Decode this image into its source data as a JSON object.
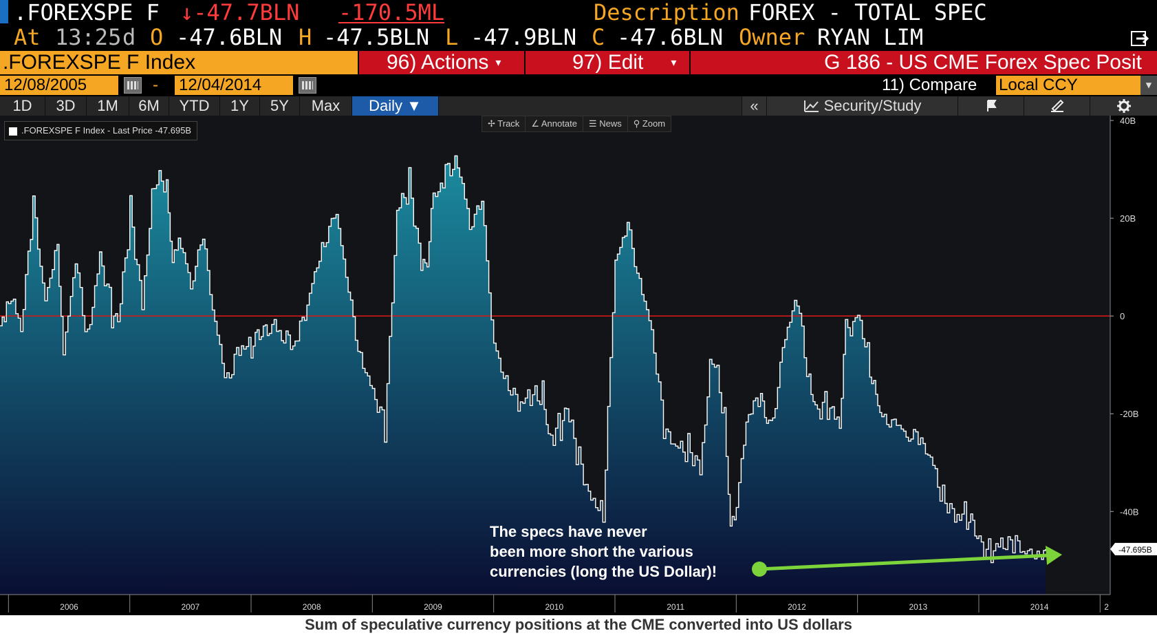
{
  "quote": {
    "ticker": ".FOREXSPE F",
    "last_change": "↓-47.7BLN",
    "net_change": "-170.5ML",
    "description_label": "Description",
    "description": "FOREX - TOTAL SPEC",
    "at_label": "At",
    "time": "13:25",
    "time_suffix": "d",
    "open_label": "O",
    "open": "-47.6BLN",
    "high_label": "H",
    "high": "-47.5BLN",
    "low_label": "L",
    "low": "-47.9BLN",
    "close_label": "C",
    "close": "-47.6BLN",
    "owner_label": "Owner",
    "owner": "RYAN LIM"
  },
  "toolbar": {
    "security": ".FOREXSPE F Index",
    "actions_label": "96) Actions",
    "edit_label": "97) Edit",
    "page_title": "G 186 - US CME Forex Spec Posit"
  },
  "dates": {
    "start": "12/08/2005",
    "separator": "-",
    "end": "12/04/2014",
    "compare_label": "11) Compare",
    "currency": "Local CCY"
  },
  "tabs": [
    "1D",
    "3D",
    "1M",
    "6M",
    "YTD",
    "1Y",
    "5Y",
    "Max",
    "Daily ▼"
  ],
  "tools": {
    "collapse": "«",
    "security_study": "Security/Study"
  },
  "mini_tools": [
    "Track",
    "Annotate",
    "News",
    "Zoom"
  ],
  "legend": ".FOREXSPE F Index - Last Price -47.695B",
  "annotation": "The specs have never\nbeen more short the various\ncurrencies (long the US Dollar)!",
  "caption": "Sum of speculative currency positions at the CME converted into US dollars",
  "colors": {
    "amber": "#f5a623",
    "red_bar": "#c8101f",
    "zero_line": "#d11a1a",
    "arrow": "#7dd33a",
    "area_top": "#1b8ca0",
    "area_bottom": "#0a0f33"
  },
  "chart_data": {
    "type": "area",
    "title": "",
    "xlabel": "",
    "ylabel": "",
    "ylim": [
      -57,
      41
    ],
    "y_ticks": [
      "40B",
      "20B",
      "0",
      "-20B",
      "-40B"
    ],
    "y_tick_values": [
      40,
      20,
      0,
      -20,
      -40
    ],
    "x_ticks": [
      "2006",
      "2007",
      "2008",
      "2009",
      "2010",
      "2011",
      "2012",
      "2013",
      "2014",
      "2"
    ],
    "reference_line": 0,
    "last_value_label": "-47.695B",
    "series": [
      {
        "name": ".FOREXSPE F Index - Last Price",
        "x": [
          2005.93,
          2006.0,
          2006.1,
          2006.2,
          2006.3,
          2006.4,
          2006.45,
          2006.55,
          2006.65,
          2006.75,
          2006.85,
          2006.9,
          2007.0,
          2007.1,
          2007.2,
          2007.3,
          2007.35,
          2007.4,
          2007.5,
          2007.6,
          2007.7,
          2007.8,
          2007.9,
          2008.0,
          2008.05,
          2008.1,
          2008.15,
          2008.25,
          2008.4,
          2008.5,
          2008.6,
          2008.7,
          2008.8,
          2008.9,
          2009.0,
          2009.1,
          2009.2,
          2009.3,
          2009.4,
          2009.45,
          2009.5,
          2009.6,
          2009.7,
          2009.8,
          2009.9,
          2010.0,
          2010.1,
          2010.2,
          2010.3,
          2010.4,
          2010.45,
          2010.55,
          2010.6,
          2010.7,
          2010.8,
          2010.9,
          2011.0,
          2011.1,
          2011.2,
          2011.3,
          2011.4,
          2011.5,
          2011.6,
          2011.7,
          2011.8,
          2011.9,
          2011.95,
          2012.0,
          2012.1,
          2012.2,
          2012.25,
          2012.3,
          2012.4,
          2012.5,
          2012.6,
          2012.65,
          2012.75,
          2012.85,
          2012.9,
          2013.0,
          2013.1,
          2013.15,
          2013.2,
          2013.3,
          2013.4,
          2013.5,
          2013.6,
          2013.7,
          2013.8,
          2013.9,
          2013.95,
          2014.0,
          2014.1,
          2014.2,
          2014.3,
          2014.4,
          2014.5,
          2014.55
        ],
        "values": [
          -2,
          6,
          -4,
          22,
          4,
          16,
          -8,
          10,
          -4,
          14,
          0,
          -3,
          22,
          4,
          28,
          25,
          10,
          18,
          6,
          15,
          -2,
          -12,
          -6,
          -8,
          -6,
          -2,
          0,
          -6,
          -4,
          8,
          16,
          20,
          4,
          -8,
          -14,
          -24,
          20,
          28,
          12,
          12,
          22,
          30,
          33,
          18,
          22,
          -6,
          -12,
          -18,
          -18,
          -16,
          -24,
          -22,
          -20,
          -30,
          -36,
          -40,
          10,
          18,
          8,
          -2,
          -24,
          -28,
          -26,
          -30,
          -8,
          -22,
          -44,
          -36,
          -20,
          -18,
          -22,
          -20,
          -4,
          2,
          -14,
          -18,
          -18,
          -24,
          -4,
          2,
          -10,
          -18,
          -22,
          -20,
          -24,
          -26,
          -30,
          -36,
          -40,
          -42,
          -45,
          -46,
          -47,
          -47.5,
          -47.7,
          -47.7,
          -47.7,
          -47.7
        ]
      }
    ]
  }
}
